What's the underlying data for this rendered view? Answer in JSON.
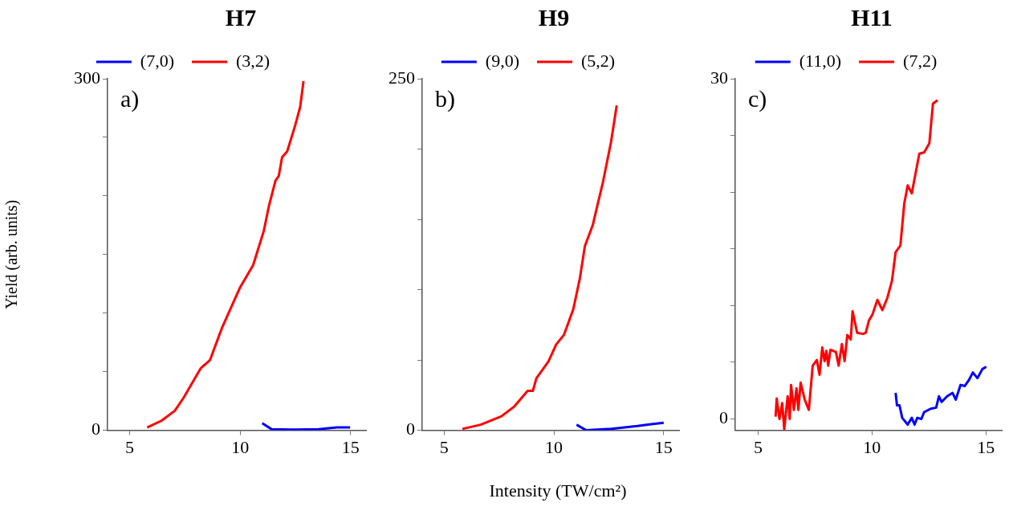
{
  "chart_data": [
    {
      "type": "line",
      "title": "H7",
      "ylabel": "Yield (arb. units)",
      "annotations": [
        "a)"
      ],
      "legend": "top",
      "grid": false,
      "xlim": [
        4,
        15.7
      ],
      "xticks": [
        5,
        10,
        15
      ],
      "ylim": [
        0,
        300
      ],
      "yticks": [
        0,
        {
          "value": 50,
          "label": null
        },
        {
          "value": 100,
          "label": null
        },
        {
          "value": 150,
          "label": null
        },
        {
          "value": 200,
          "label": null
        },
        {
          "value": 250,
          "label": null
        },
        300
      ],
      "series": [
        {
          "name": "(7,0)",
          "color": "#0000ff",
          "x": [
            11.0,
            11.42,
            12.37,
            13.55,
            14.38,
            14.98
          ],
          "values": [
            6,
            1,
            0.5,
            1,
            2.4,
            2.4
          ]
        },
        {
          "name": "(3,2)",
          "color": "#ff0000",
          "x": [
            5.79,
            6.45,
            7.04,
            7.45,
            8.22,
            8.64,
            9.17,
            10.0,
            10.59,
            11.07,
            11.3,
            11.6,
            11.75,
            11.9,
            12.13,
            12.49,
            12.72,
            12.87
          ],
          "values": [
            2.4,
            8.3,
            16.6,
            28,
            53,
            60,
            87,
            122,
            141,
            170,
            191,
            213,
            217,
            233,
            238,
            260,
            276,
            298
          ]
        }
      ]
    },
    {
      "type": "line",
      "title": "H9",
      "xlabel": "Intensity (TW/cm²)",
      "annotations": [
        "b)"
      ],
      "legend": "top",
      "grid": false,
      "xlim": [
        4,
        15.7
      ],
      "xticks": [
        5,
        10,
        15
      ],
      "ylim": [
        0,
        250
      ],
      "yticks": [
        0,
        {
          "value": 50,
          "label": null
        },
        {
          "value": 100,
          "label": null
        },
        {
          "value": 150,
          "label": null
        },
        {
          "value": 200,
          "label": null
        },
        250
      ],
      "series": [
        {
          "name": "(9,0)",
          "color": "#0000ff",
          "x": [
            11.03,
            11.47,
            12.6,
            13.8,
            14.5,
            15.0
          ],
          "values": [
            4,
            0,
            1,
            3,
            4.5,
            5.3
          ]
        },
        {
          "name": "(5,2)",
          "color": "#ff0000",
          "x": [
            5.83,
            6.66,
            7.61,
            8.2,
            8.8,
            9.04,
            9.2,
            9.75,
            10.1,
            10.46,
            10.88,
            11.18,
            11.41,
            11.77,
            11.95,
            12.24,
            12.6,
            12.86
          ],
          "values": [
            1,
            4,
            10,
            17,
            28,
            28,
            37,
            49,
            61,
            68,
            86,
            108,
            131,
            146,
            158,
            177,
            205,
            231
          ]
        }
      ]
    },
    {
      "type": "line",
      "title": "H11",
      "annotations": [
        "c)"
      ],
      "legend": "top",
      "grid": false,
      "xlim": [
        4,
        15.7
      ],
      "xticks": [
        5,
        10,
        15
      ],
      "ylim": [
        -1,
        30
      ],
      "yticks": [
        0,
        {
          "value": 5,
          "label": null
        },
        {
          "value": 10,
          "label": null
        },
        {
          "value": 15,
          "label": null
        },
        {
          "value": 20,
          "label": null
        },
        {
          "value": 25,
          "label": null
        },
        30
      ],
      "series": [
        {
          "name": "(11,0)",
          "color": "#0000ff",
          "x": [
            11.04,
            11.1,
            11.21,
            11.33,
            11.57,
            11.75,
            11.87,
            11.99,
            12.17,
            12.29,
            12.58,
            12.82,
            12.94,
            13.06,
            13.3,
            13.54,
            13.68,
            13.89,
            14.07,
            14.25,
            14.43,
            14.63,
            14.85,
            15.02
          ],
          "values": [
            2.3,
            1.2,
            1.2,
            0.1,
            -0.5,
            0.1,
            -0.5,
            0.1,
            0,
            0.6,
            0.9,
            1.0,
            2.0,
            1.5,
            2.0,
            2.3,
            1.7,
            3.0,
            2.9,
            3.4,
            4.1,
            3.6,
            4.4,
            4.6
          ]
        },
        {
          "name": "(7,2)",
          "color": "#ff0000",
          "x": [
            5.77,
            5.82,
            5.94,
            6.06,
            6.15,
            6.3,
            6.39,
            6.45,
            6.57,
            6.69,
            6.77,
            6.87,
            7.05,
            7.23,
            7.4,
            7.58,
            7.7,
            7.82,
            7.92,
            8.0,
            8.08,
            8.18,
            8.42,
            8.54,
            8.68,
            8.8,
            8.92,
            9.07,
            9.15,
            9.35,
            9.61,
            9.73,
            9.87,
            10.02,
            10.24,
            10.46,
            10.68,
            10.88,
            11.04,
            11.25,
            11.42,
            11.57,
            11.75,
            12.08,
            12.29,
            12.52,
            12.68,
            12.88
          ],
          "values": [
            0.2,
            1.8,
            0,
            1.4,
            -0.9,
            2,
            0,
            3,
            0.8,
            2.7,
            0.8,
            3.2,
            1.7,
            0.8,
            4.7,
            5.2,
            3.9,
            6.3,
            5.1,
            6.0,
            4.7,
            6.1,
            5.9,
            4.7,
            6.6,
            5.1,
            7.4,
            7.0,
            9.5,
            7.6,
            7.5,
            7.6,
            8.7,
            9.2,
            10.5,
            9.6,
            10.7,
            12.2,
            14.7,
            15.3,
            19.0,
            20.6,
            19.9,
            23.4,
            23.5,
            24.3,
            27.8,
            28.1
          ]
        }
      ]
    }
  ]
}
